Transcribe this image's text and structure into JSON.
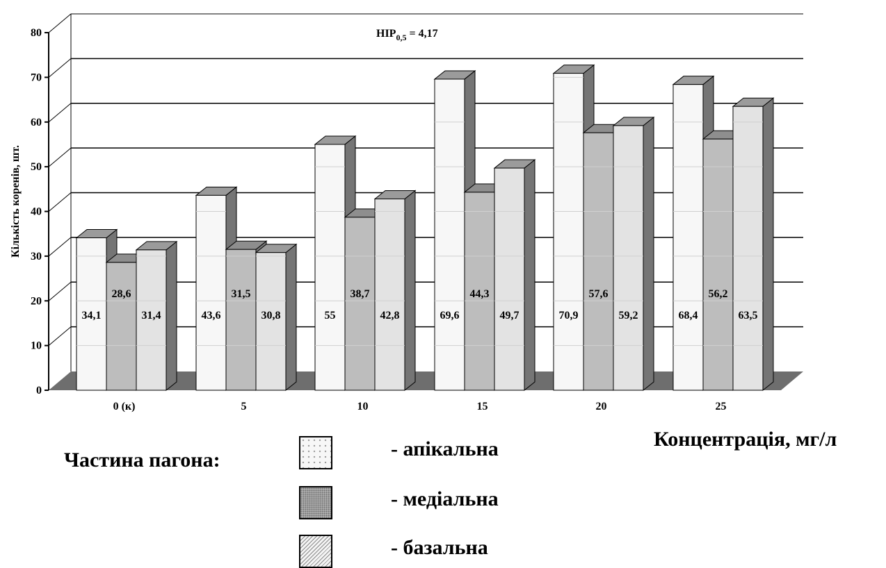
{
  "chart_data": {
    "type": "bar",
    "categories": [
      "0 (к)",
      "5",
      "10",
      "15",
      "20",
      "25"
    ],
    "series": [
      {
        "name": "- апікальна",
        "values": [
          34.1,
          43.6,
          55,
          69.6,
          70.9,
          68.4
        ],
        "labels": [
          "34,1",
          "43,6",
          "55",
          "69,6",
          "70,9",
          "68,4"
        ]
      },
      {
        "name": "- медіальна",
        "values": [
          28.6,
          31.5,
          38.7,
          44.3,
          57.6,
          56.2
        ],
        "labels": [
          "28,6",
          "31,5",
          "38,7",
          "44,3",
          "57,6",
          "56,2"
        ]
      },
      {
        "name": "- базальна",
        "values": [
          31.4,
          30.8,
          42.8,
          49.7,
          59.2,
          63.5
        ],
        "labels": [
          "31,4",
          "30,8",
          "42,8",
          "49,7",
          "59,2",
          "63,5"
        ]
      }
    ],
    "ylim": [
      0,
      80
    ],
    "yticks": [
      "0",
      "10",
      "20",
      "30",
      "40",
      "50",
      "60",
      "70",
      "80"
    ],
    "ylabel": "Кількість коренів, шт.",
    "xlabel": "Концентрація, мг/л",
    "annotation": {
      "main": "НІР",
      "sub": "0,5",
      "rest": " = 4,17"
    },
    "legend_title": "Частина пагона:",
    "grid": true,
    "legend_position": "bottom",
    "colors": {
      "apical": "#f7f7f7",
      "medial": "#bdbdbd",
      "basal": "#e3e3e3",
      "side": "#757575",
      "floor": "#6e6e6e"
    }
  }
}
